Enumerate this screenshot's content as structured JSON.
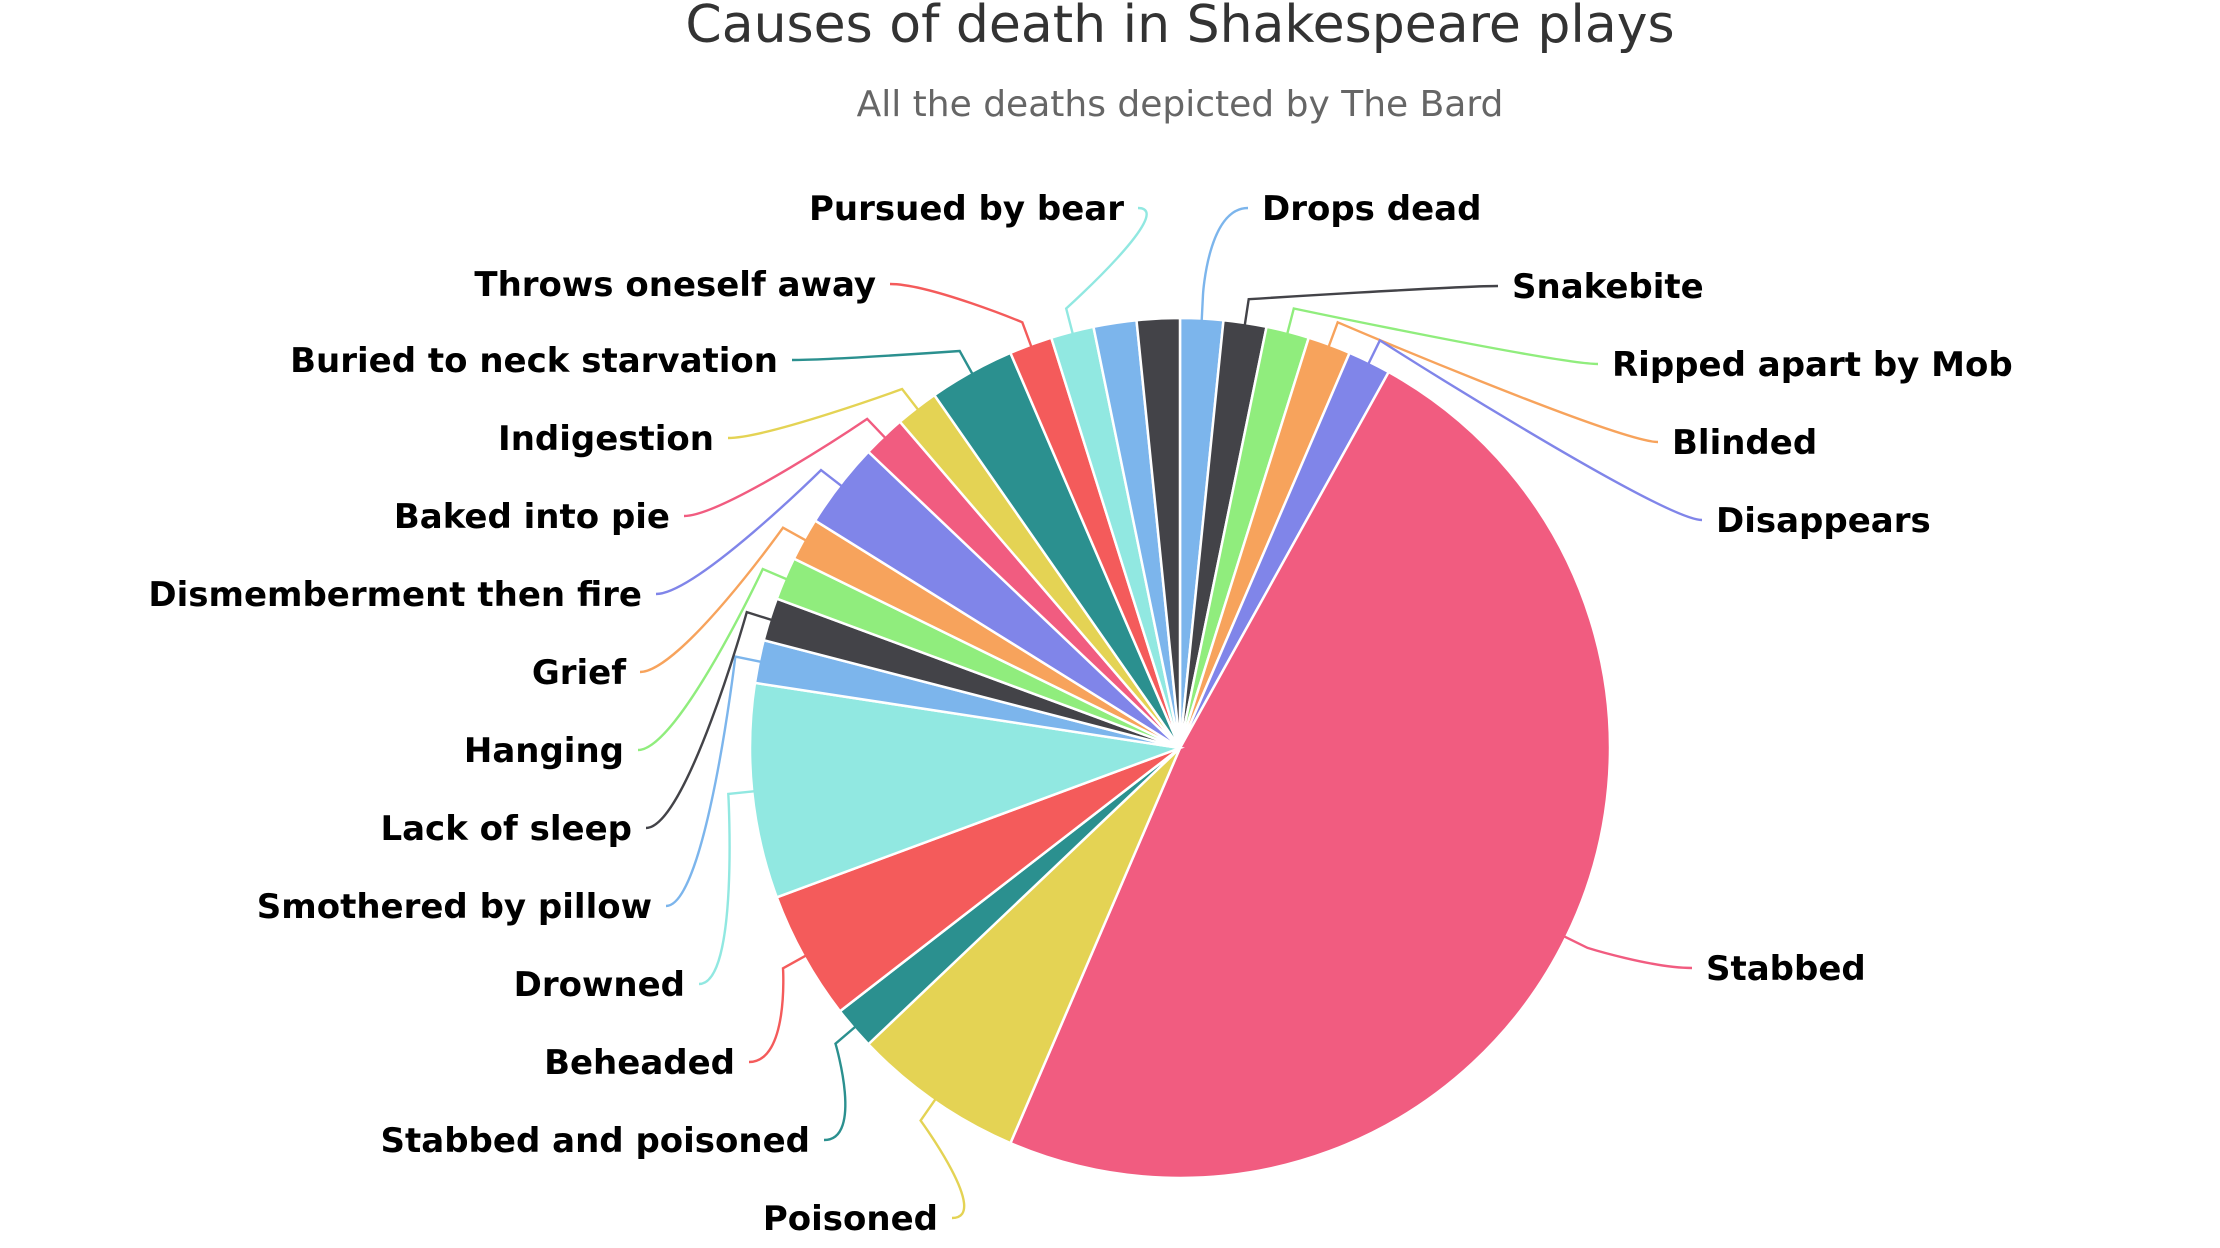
{
  "chart_data": {
    "type": "pie",
    "title": "Causes of death in Shakespeare plays",
    "subtitle": "All the deaths depicted by The Bard",
    "start_angle": 0,
    "direction": "clockwise",
    "slices": [
      {
        "label": "Drops dead",
        "value": 1,
        "color": "#7cb5ec"
      },
      {
        "label": "Snakebite",
        "value": 1,
        "color": "#434348"
      },
      {
        "label": "Ripped apart by Mob",
        "value": 1,
        "color": "#90ed7d"
      },
      {
        "label": "Blinded",
        "value": 1,
        "color": "#f7a35c"
      },
      {
        "label": "Disappears",
        "value": 1,
        "color": "#8085e9"
      },
      {
        "label": "Stabbed",
        "value": 30,
        "color": "#f15c80"
      },
      {
        "label": "Poisoned",
        "value": 4,
        "color": "#e4d354"
      },
      {
        "label": "Stabbed and poisoned",
        "value": 1,
        "color": "#2b908f"
      },
      {
        "label": "Beheaded",
        "value": 3,
        "color": "#f45b5b"
      },
      {
        "label": "Drowned",
        "value": 5,
        "color": "#91e8e1"
      },
      {
        "label": "Smothered by pillow",
        "value": 1,
        "color": "#7cb5ec"
      },
      {
        "label": "Lack of sleep",
        "value": 1,
        "color": "#434348"
      },
      {
        "label": "Hanging",
        "value": 1,
        "color": "#90ed7d"
      },
      {
        "label": "Grief",
        "value": 1,
        "color": "#f7a35c"
      },
      {
        "label": "Dismemberment then fire",
        "value": 2,
        "color": "#8085e9"
      },
      {
        "label": "Baked into pie",
        "value": 1,
        "color": "#f15c80"
      },
      {
        "label": "Indigestion",
        "value": 1,
        "color": "#e4d354"
      },
      {
        "label": "Buried to neck starvation",
        "value": 2,
        "color": "#2b908f"
      },
      {
        "label": "Throws oneself away",
        "value": 1,
        "color": "#f45b5b"
      },
      {
        "label": "Pursued by bear",
        "value": 1,
        "color": "#91e8e1"
      },
      {
        "label": "Unlabeled slice",
        "value": 1,
        "color": "#7cb5ec"
      },
      {
        "label": "Unlabeled slice",
        "value": 1,
        "color": "#434348"
      }
    ],
    "legend": "none"
  }
}
